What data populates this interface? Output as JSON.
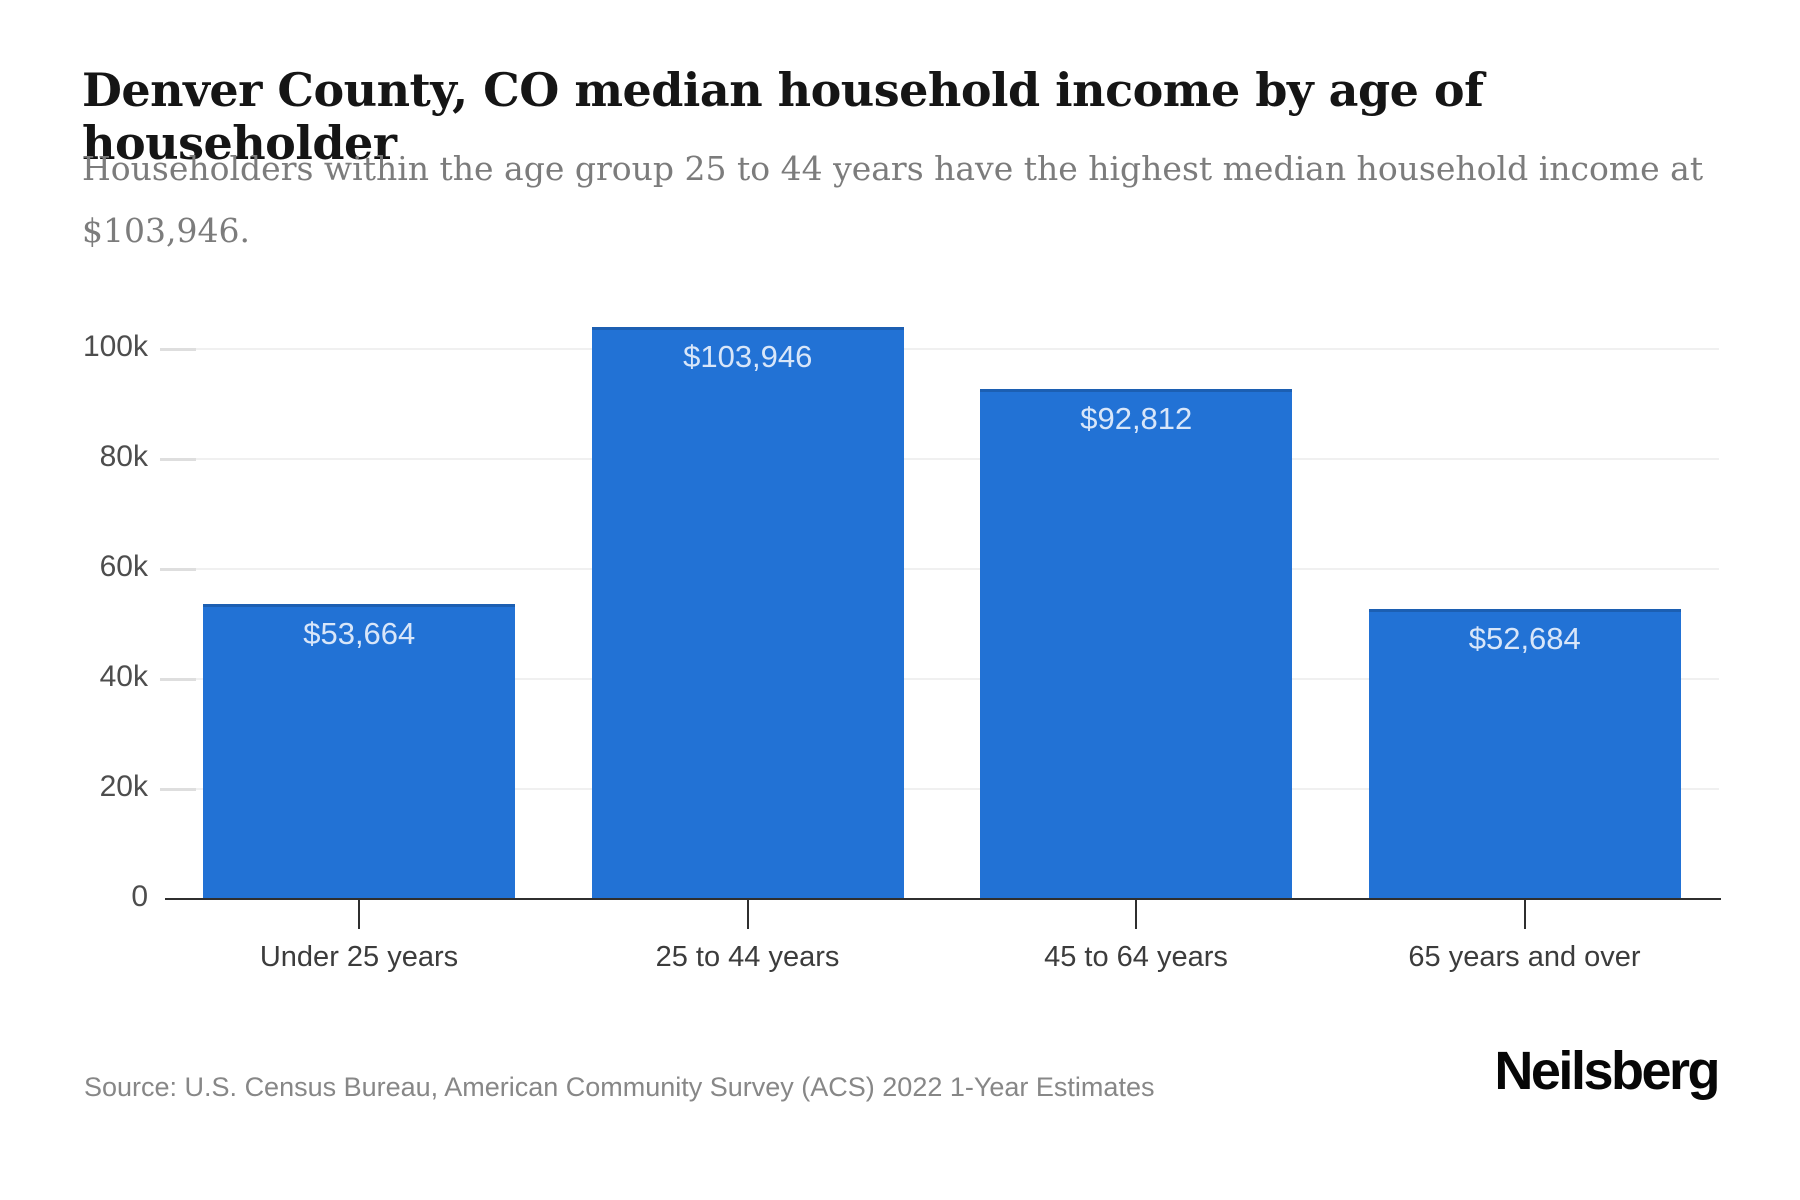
{
  "page": {
    "title": "Denver County, CO median household income by age of householder",
    "subtitle": "Householders within the age group 25 to 44 years have the highest median household income at $103,946.",
    "source": "Source: U.S. Census Bureau, American Community Survey (ACS) 2022 1-Year Estimates",
    "brand": "Neilsberg"
  },
  "colors": {
    "bar": "#2272d5",
    "bar_label": "#d8e6f9",
    "grid": "#f0f0f0",
    "axis": "#2f2f2f",
    "y_tick": "#dedede",
    "y_label": "#4d4d4d",
    "x_label": "#3c3c3c",
    "title": "#151515",
    "subtitle": "#7c7c7c",
    "source": "#878787"
  },
  "chart_data": {
    "type": "bar",
    "title": "Denver County, CO median household income by age of householder",
    "xlabel": "",
    "ylabel": "",
    "categories": [
      "Under 25 years",
      "25 to 44 years",
      "45 to 64 years",
      "65 years and over"
    ],
    "values": [
      53664,
      103946,
      92812,
      52684
    ],
    "value_labels": [
      "$53,664",
      "$103,946",
      "$92,812",
      "$52,684"
    ],
    "y_ticks": [
      {
        "value": 0,
        "label": "0"
      },
      {
        "value": 20000,
        "label": "20k"
      },
      {
        "value": 40000,
        "label": "40k"
      },
      {
        "value": 60000,
        "label": "60k"
      },
      {
        "value": 80000,
        "label": "80k"
      },
      {
        "value": 100000,
        "label": "100k"
      }
    ],
    "ylim": [
      0,
      112000
    ],
    "grid": true,
    "legend": false
  }
}
